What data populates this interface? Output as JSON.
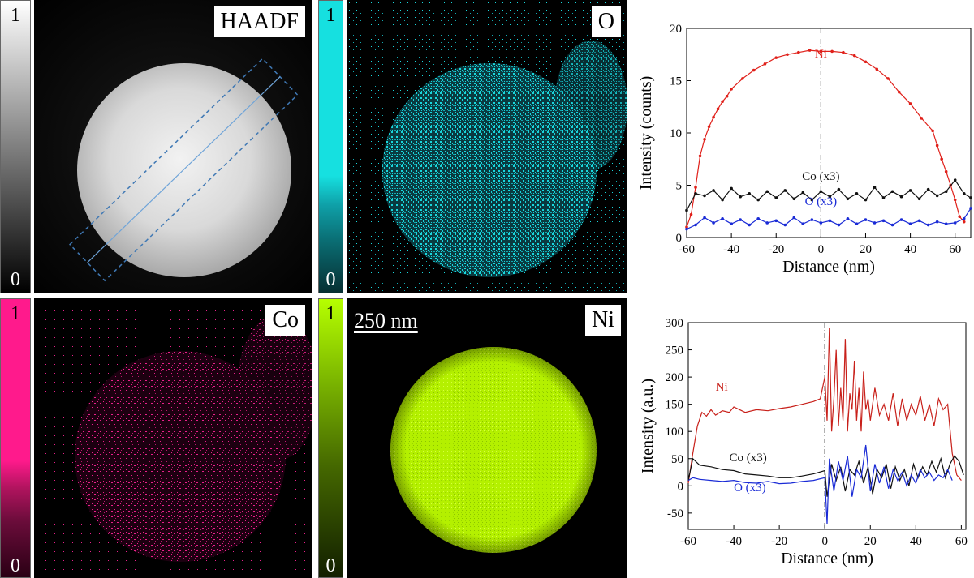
{
  "maps": [
    {
      "id": "haadf",
      "label": "HAADF",
      "scale_top": "1",
      "scale_bottom": "0",
      "gradient": [
        "#ffffff",
        "#000000"
      ]
    },
    {
      "id": "o",
      "label": "O",
      "scale_top": "1",
      "scale_bottom": "0",
      "gradient": [
        "#16e0e0",
        "#062f32"
      ]
    },
    {
      "id": "co",
      "label": "Co",
      "scale_top": "1",
      "scale_bottom": "0",
      "gradient": [
        "#ff1a8c",
        "#2a0014"
      ]
    },
    {
      "id": "ni",
      "label": "Ni",
      "scale_top": "1",
      "scale_bottom": "0",
      "gradient": [
        "#b6ff00",
        "#121f00"
      ]
    }
  ],
  "scale_bar_text": "250 nm",
  "colors": {
    "ni": "#e0201a",
    "co": "#111111",
    "o": "#1a2bd6",
    "cyan": "#19d6dc",
    "magenta": "#e8208a",
    "lime": "#b4f000"
  },
  "chart_data": [
    {
      "type": "line",
      "xlabel": "Distance (nm)",
      "ylabel": "Intensity (counts)",
      "xlim": [
        -60,
        67
      ],
      "ylim": [
        0,
        20
      ],
      "xticks": [
        -60,
        -40,
        -20,
        0,
        20,
        40,
        60
      ],
      "yticks": [
        0,
        5,
        10,
        15,
        20
      ],
      "markers": true,
      "series": [
        {
          "name": "Ni",
          "color": "#e0201a",
          "x": [
            -60,
            -58,
            -56,
            -54,
            -52,
            -50,
            -48,
            -46,
            -44,
            -42,
            -40,
            -35,
            -30,
            -25,
            -20,
            -15,
            -10,
            -5,
            0,
            5,
            10,
            15,
            20,
            25,
            30,
            35,
            40,
            45,
            50,
            52,
            54,
            56,
            58,
            60,
            62,
            64
          ],
          "y": [
            1.0,
            2.2,
            4.8,
            7.8,
            9.4,
            10.6,
            11.5,
            12.3,
            13.0,
            13.5,
            14.2,
            15.2,
            16.0,
            16.6,
            17.2,
            17.5,
            17.7,
            17.9,
            17.8,
            17.8,
            17.7,
            17.4,
            16.8,
            16.1,
            15.2,
            13.9,
            12.8,
            11.4,
            10.2,
            8.8,
            7.5,
            6.3,
            5.0,
            3.6,
            2.0,
            1.5
          ]
        },
        {
          "name": "Co (x3)",
          "color": "#111111",
          "x": [
            -60,
            -56,
            -52,
            -48,
            -44,
            -40,
            -36,
            -32,
            -28,
            -24,
            -20,
            -16,
            -12,
            -8,
            -4,
            0,
            4,
            8,
            12,
            16,
            20,
            24,
            28,
            32,
            36,
            40,
            44,
            48,
            52,
            56,
            60,
            64,
            67
          ],
          "y": [
            2.6,
            4.2,
            4.0,
            4.5,
            3.6,
            4.7,
            3.9,
            4.2,
            3.6,
            4.4,
            3.8,
            4.5,
            3.7,
            4.3,
            3.6,
            4.4,
            3.9,
            4.6,
            3.7,
            4.2,
            3.6,
            4.8,
            3.8,
            4.4,
            3.9,
            4.5,
            3.7,
            4.6,
            4.0,
            4.4,
            5.5,
            4.2,
            3.8
          ]
        },
        {
          "name": "O (x3)",
          "color": "#1a2bd6",
          "x": [
            -60,
            -56,
            -52,
            -48,
            -44,
            -40,
            -36,
            -32,
            -28,
            -24,
            -20,
            -16,
            -12,
            -8,
            -4,
            0,
            4,
            8,
            12,
            16,
            20,
            24,
            28,
            32,
            36,
            40,
            44,
            48,
            52,
            56,
            60,
            64,
            67
          ],
          "y": [
            0.8,
            1.2,
            1.9,
            1.4,
            1.8,
            1.3,
            1.7,
            1.2,
            1.8,
            1.4,
            1.6,
            1.2,
            1.9,
            1.3,
            1.7,
            1.4,
            1.6,
            1.2,
            1.8,
            1.3,
            1.7,
            1.4,
            1.6,
            1.2,
            1.7,
            1.3,
            1.6,
            1.2,
            1.5,
            1.3,
            1.4,
            1.8,
            2.8
          ]
        }
      ],
      "annotations": [
        {
          "text": "Ni",
          "x": 0,
          "y": 17.2,
          "color": "#e0201a"
        },
        {
          "text": "Co (x3)",
          "x": 0,
          "y": 5.5,
          "color": "#111111"
        },
        {
          "text": "O (x3)",
          "x": 0,
          "y": 3.1,
          "color": "#1a2bd6"
        }
      ],
      "vline": 0
    },
    {
      "type": "line",
      "xlabel": "Distance (nm)",
      "ylabel": "Intensity (a.u.)",
      "xlim": [
        -60,
        62
      ],
      "ylim": [
        -80,
        300
      ],
      "xticks": [
        -60,
        -40,
        -20,
        0,
        20,
        40,
        60
      ],
      "yticks": [
        -50,
        0,
        50,
        100,
        150,
        200,
        250,
        300
      ],
      "markers": false,
      "series": [
        {
          "name": "Ni",
          "color": "#c8201a",
          "x": [
            -60,
            -58,
            -56,
            -54,
            -52,
            -50,
            -48,
            -45,
            -42,
            -40,
            -35,
            -30,
            -25,
            -20,
            -15,
            -10,
            -5,
            -2,
            0,
            1,
            2,
            3,
            4,
            5,
            6,
            7,
            8,
            9,
            10,
            11,
            12,
            13,
            14,
            15,
            16,
            17,
            18,
            19,
            20,
            22,
            24,
            26,
            28,
            30,
            32,
            34,
            36,
            38,
            40,
            42,
            44,
            46,
            48,
            50,
            52,
            54,
            56,
            58,
            60
          ],
          "y": [
            5,
            60,
            110,
            135,
            128,
            140,
            130,
            138,
            135,
            145,
            135,
            140,
            138,
            142,
            145,
            150,
            155,
            160,
            200,
            120,
            290,
            100,
            160,
            250,
            110,
            180,
            120,
            270,
            100,
            170,
            140,
            230,
            120,
            180,
            100,
            210,
            140,
            160,
            120,
            180,
            130,
            150,
            120,
            170,
            110,
            160,
            120,
            150,
            130,
            165,
            120,
            150,
            110,
            160,
            140,
            150,
            60,
            20,
            10
          ]
        },
        {
          "name": "Co (x3)",
          "color": "#111111",
          "x": [
            -60,
            -58,
            -55,
            -50,
            -45,
            -40,
            -35,
            -30,
            -25,
            -20,
            -15,
            -10,
            -5,
            0,
            1,
            3,
            5,
            7,
            9,
            11,
            13,
            15,
            17,
            19,
            21,
            23,
            25,
            27,
            29,
            31,
            33,
            35,
            37,
            39,
            41,
            43,
            45,
            47,
            49,
            51,
            53,
            55,
            57,
            59,
            61
          ],
          "y": [
            10,
            50,
            38,
            35,
            30,
            28,
            22,
            20,
            18,
            15,
            15,
            18,
            22,
            28,
            -20,
            40,
            10,
            35,
            -10,
            30,
            20,
            45,
            5,
            35,
            -15,
            30,
            15,
            40,
            -5,
            35,
            10,
            30,
            0,
            40,
            15,
            35,
            20,
            45,
            25,
            50,
            15,
            40,
            55,
            45,
            20
          ]
        },
        {
          "name": "O (x3)",
          "color": "#1a2bd6",
          "x": [
            -60,
            -58,
            -55,
            -50,
            -45,
            -40,
            -35,
            -30,
            -25,
            -20,
            -15,
            -10,
            -5,
            0,
            1,
            2,
            4,
            6,
            8,
            10,
            12,
            14,
            16,
            18,
            20,
            22,
            24,
            26,
            28,
            30,
            32,
            34,
            36,
            38,
            40,
            42,
            44,
            46,
            48,
            50,
            52,
            54,
            56
          ],
          "y": [
            10,
            15,
            12,
            10,
            8,
            10,
            6,
            5,
            8,
            4,
            5,
            8,
            10,
            15,
            -70,
            50,
            -10,
            45,
            10,
            55,
            -20,
            30,
            15,
            75,
            -10,
            40,
            5,
            35,
            -5,
            30,
            10,
            25,
            0,
            20,
            5,
            30,
            15,
            25,
            10,
            20,
            15,
            30,
            10
          ]
        }
      ],
      "annotations": [
        {
          "text": "Ni",
          "x": -48,
          "y": 175,
          "color": "#c8201a"
        },
        {
          "text": "Co (x3)",
          "x": -42,
          "y": 45,
          "color": "#111111"
        },
        {
          "text": "O (x3)",
          "x": -40,
          "y": -10,
          "color": "#1a2bd6"
        }
      ],
      "vline": 0
    }
  ]
}
